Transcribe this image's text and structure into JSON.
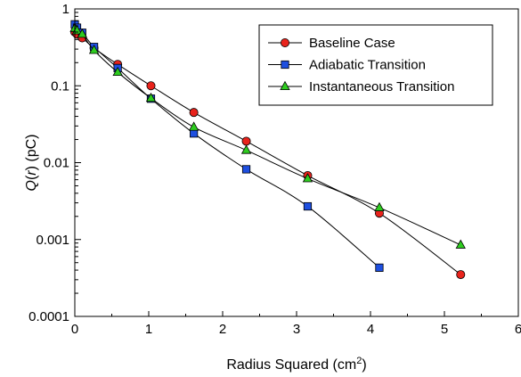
{
  "chart_data": {
    "type": "line",
    "title": "",
    "xlabel": {
      "prefix": "Radius Squared (cm",
      "sup": "2",
      "suffix": ")"
    },
    "ylabel": {
      "q": "Q",
      "open": "(",
      "r": "r",
      "close": ") (pC)"
    },
    "xlim": [
      0,
      6
    ],
    "ylim": [
      0.0001,
      1
    ],
    "yscale": "log",
    "grid": false,
    "legend_position": "top-right",
    "x_ticks": [
      {
        "value": 0,
        "label": "0"
      },
      {
        "value": 1,
        "label": "1"
      },
      {
        "value": 2,
        "label": "2"
      },
      {
        "value": 3,
        "label": "3"
      },
      {
        "value": 4,
        "label": "4"
      },
      {
        "value": 5,
        "label": "5"
      },
      {
        "value": 6,
        "label": "6"
      }
    ],
    "y_ticks": [
      {
        "value": 1,
        "label": "1"
      },
      {
        "value": 0.1,
        "label": "0.1"
      },
      {
        "value": 0.01,
        "label": "0.01"
      },
      {
        "value": 0.001,
        "label": "0.001"
      },
      {
        "value": 0.0001,
        "label": "0.0001"
      }
    ],
    "series": [
      {
        "name": "Baseline Case",
        "marker": "circle",
        "color": "#e8231c",
        "x": [
          0.0,
          0.03,
          0.1,
          0.26,
          0.58,
          1.03,
          1.61,
          2.32,
          3.15,
          4.12,
          5.22
        ],
        "y": [
          0.5,
          0.47,
          0.42,
          0.31,
          0.19,
          0.1,
          0.045,
          0.019,
          0.0068,
          0.0022,
          0.00035
        ]
      },
      {
        "name": "Adiabatic Transition",
        "marker": "square",
        "color": "#1e4fe0",
        "x": [
          0.0,
          0.03,
          0.1,
          0.26,
          0.58,
          1.03,
          1.61,
          2.32,
          3.15,
          4.12
        ],
        "y": [
          0.63,
          0.57,
          0.49,
          0.32,
          0.17,
          0.068,
          0.024,
          0.0082,
          0.0027,
          0.00043
        ]
      },
      {
        "name": "Instantaneous Transition",
        "marker": "triangle",
        "color": "#2ecc1f",
        "x": [
          0.0,
          0.03,
          0.1,
          0.26,
          0.58,
          1.03,
          1.61,
          2.32,
          3.15,
          4.12,
          5.22
        ],
        "y": [
          0.56,
          0.52,
          0.47,
          0.29,
          0.15,
          0.069,
          0.029,
          0.0145,
          0.0062,
          0.0026,
          0.00085
        ]
      }
    ]
  }
}
